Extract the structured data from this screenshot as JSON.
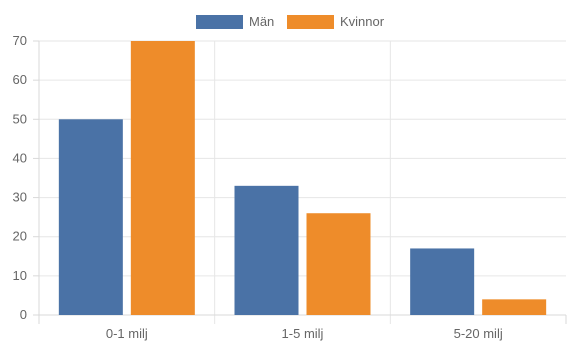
{
  "chart_data": {
    "type": "bar",
    "categories": [
      "0-1 milj",
      "1-5 milj",
      "5-20 milj"
    ],
    "series": [
      {
        "name": "Män",
        "values": [
          50,
          33,
          17
        ],
        "color": "#4a72a6"
      },
      {
        "name": "Kvinnor",
        "values": [
          70,
          26,
          4
        ],
        "color": "#ee8c2a"
      }
    ],
    "ylim": [
      0,
      70
    ],
    "yticks": [
      0,
      10,
      20,
      30,
      40,
      50,
      60,
      70
    ],
    "grid": true,
    "legend_position": "top-center",
    "title": "",
    "xlabel": "",
    "ylabel": ""
  }
}
